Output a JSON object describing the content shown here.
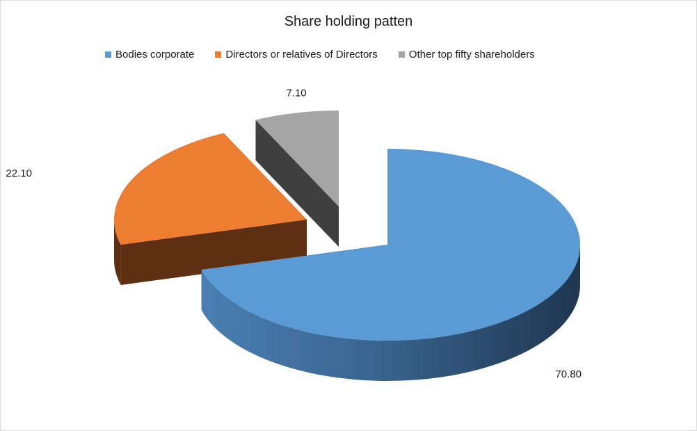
{
  "chart_data": {
    "type": "pie",
    "title": "Share holding patten",
    "categories": [
      "Bodies corporate",
      "Directors or relatives of Directors",
      "Other top fifty shareholders"
    ],
    "values": [
      70.8,
      22.1,
      7.1
    ],
    "labels": [
      "70.80",
      "22.10",
      "7.10"
    ],
    "colors": [
      "#5b9bd5",
      "#ed7d31",
      "#a5a5a5"
    ],
    "legend_position": "top",
    "style": "3d-exploded"
  }
}
